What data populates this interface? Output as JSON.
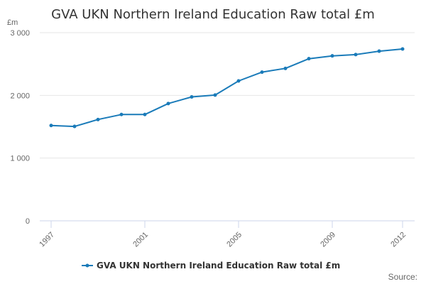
{
  "chart_data": {
    "type": "line",
    "title": "GVA UKN Northern Ireland Education Raw total £m",
    "unit_label": "£m",
    "x": [
      1997,
      1998,
      1999,
      2000,
      2001,
      2002,
      2003,
      2004,
      2005,
      2006,
      2007,
      2008,
      2009,
      2010,
      2011,
      2012
    ],
    "x_tick_labels": [
      "1997",
      "2001",
      "2005",
      "2009",
      "2012"
    ],
    "series": [
      {
        "name": "GVA UKN Northern Ireland Education Raw total £m",
        "color": "#1a7bb9",
        "values": [
          1520,
          1505,
          1615,
          1695,
          1695,
          1870,
          1975,
          2005,
          2230,
          2370,
          2430,
          2585,
          2630,
          2650,
          2705,
          2740
        ]
      }
    ],
    "ylim": [
      0,
      3000
    ],
    "y_ticks": [
      {
        "value": 0,
        "label": "0"
      },
      {
        "value": 1000,
        "label": "1 000"
      },
      {
        "value": 2000,
        "label": "2 000"
      },
      {
        "value": 3000,
        "label": "3 000"
      }
    ],
    "grid": true,
    "legend": "bottom-center",
    "source_label": "Source:"
  }
}
